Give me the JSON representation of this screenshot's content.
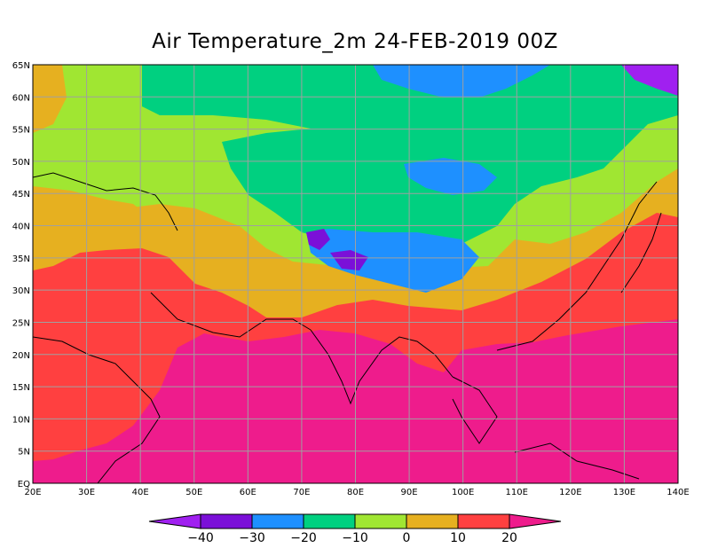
{
  "title": "Air Temperature_2m 24-FEB-2019 00Z",
  "map": {
    "lon_min": 20,
    "lon_max": 140,
    "lat_min": 0,
    "lat_max": 65,
    "lon_ticks": [
      {
        "value": 20,
        "label": "20E"
      },
      {
        "value": 30,
        "label": "30E"
      },
      {
        "value": 40,
        "label": "40E"
      },
      {
        "value": 50,
        "label": "50E"
      },
      {
        "value": 60,
        "label": "60E"
      },
      {
        "value": 70,
        "label": "70E"
      },
      {
        "value": 80,
        "label": "80E"
      },
      {
        "value": 90,
        "label": "90E"
      },
      {
        "value": 100,
        "label": "100E"
      },
      {
        "value": 110,
        "label": "110E"
      },
      {
        "value": 120,
        "label": "120E"
      },
      {
        "value": 130,
        "label": "130E"
      },
      {
        "value": 140,
        "label": "140E"
      }
    ],
    "lat_ticks": [
      {
        "value": 0,
        "label": "EQ"
      },
      {
        "value": 5,
        "label": "5N"
      },
      {
        "value": 10,
        "label": "10N"
      },
      {
        "value": 15,
        "label": "15N"
      },
      {
        "value": 20,
        "label": "20N"
      },
      {
        "value": 25,
        "label": "25N"
      },
      {
        "value": 30,
        "label": "30N"
      },
      {
        "value": 35,
        "label": "35N"
      },
      {
        "value": 40,
        "label": "40N"
      },
      {
        "value": 45,
        "label": "45N"
      },
      {
        "value": 50,
        "label": "50N"
      },
      {
        "value": 55,
        "label": "55N"
      },
      {
        "value": 60,
        "label": "60N"
      },
      {
        "value": 65,
        "label": "65N"
      }
    ],
    "grid_lines": true,
    "grid_color": "#a0a0a0"
  },
  "colorbar": {
    "levels": [
      -40,
      -30,
      -20,
      -10,
      0,
      10,
      20
    ],
    "labels": [
      "−40",
      "−30",
      "−20",
      "−10",
      "0",
      "10",
      "20"
    ],
    "colors": [
      "#a020f0",
      "#7b10d8",
      "#1e90ff",
      "#00d080",
      "#a0e632",
      "#e6b020",
      "#ff4040",
      "#ee1c8c"
    ]
  }
}
